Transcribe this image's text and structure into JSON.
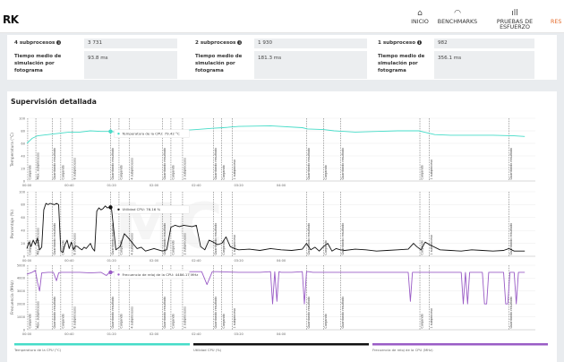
{
  "header": {
    "logo": "RK",
    "nav": [
      {
        "label": "INICIO",
        "icon": "home-icon",
        "glyph": "⌂"
      },
      {
        "label": "BENCHMARKS",
        "icon": "gauge-icon",
        "glyph": "◠"
      },
      {
        "label": "PRUEBAS DE ESFUERZO",
        "icon": "bar-chart-icon",
        "glyph": "ıll"
      },
      {
        "label": "RES",
        "icon": "results-icon",
        "glyph": ""
      }
    ],
    "active_color": "#e46b2b"
  },
  "stats": [
    {
      "label": "4 subprocesos",
      "value": "3 731",
      "time_label": "Tiempo medio de simulación por fotograma",
      "time_value": "93.8 ms"
    },
    {
      "label": "2 subprocesos",
      "value": "1 930",
      "time_label": "Tiempo medio de simulación por fotograma",
      "time_value": "181.3 ms"
    },
    {
      "label": "1 subproceso",
      "value": "982",
      "time_label": "Tiempo medio de simulación por fotograma",
      "time_value": "356.1 ms"
    }
  ],
  "monitor": {
    "title": "Supervisión detallada",
    "x_ticks": [
      "00:00",
      "00:40",
      "01:20",
      "02:00",
      "02:40",
      "03:20",
      "04:00"
    ],
    "markers": [
      {
        "t": 0.8,
        "label": "Cargando"
      },
      {
        "t": 8.5,
        "label": "Máx. subprocesos"
      },
      {
        "t": 24,
        "label": "Guardando resultado"
      },
      {
        "t": 32,
        "label": "Cargando"
      },
      {
        "t": 43,
        "label": "8 subprocesos"
      },
      {
        "t": 79,
        "label": "Guardando resultado"
      },
      {
        "t": 87,
        "label": "Cargando"
      },
      {
        "t": 97,
        "label": "4 subprocesos"
      },
      {
        "t": 128,
        "label": "Guardando resultado"
      },
      {
        "t": 136,
        "label": "Cargando"
      },
      {
        "t": 147,
        "label": "2 subprocesos"
      },
      {
        "t": 176,
        "label": "Guardando resultado"
      },
      {
        "t": 184,
        "label": "Cargando"
      },
      {
        "t": 194,
        "label": "1 subproceso"
      },
      {
        "t": 264,
        "label": "Guardando resultado"
      },
      {
        "t": 280,
        "label": "Cargando"
      },
      {
        "t": 296,
        "label": "Guardando resultado"
      },
      {
        "t": 371,
        "label": "Cargando"
      },
      {
        "t": 380,
        "label": "1 subproceso"
      },
      {
        "t": 455,
        "label": "Guardando resultado"
      }
    ],
    "legend": [
      {
        "label": "Temperatura de la CPU (°C)",
        "color": "#46dcc8"
      },
      {
        "label": "Utilidad CPU (%)",
        "color": "#111111"
      },
      {
        "label": "Frecuencia de reloj de la CPU (MHz)",
        "color": "#9a5cc6"
      }
    ]
  },
  "chart_data": [
    {
      "type": "line",
      "ylabel": "Temperatura (°C)",
      "ylim": [
        0,
        100
      ],
      "y_ticks": [
        0,
        20,
        40,
        60,
        80,
        100
      ],
      "xlim": [
        0,
        480
      ],
      "series": [
        {
          "name": "Temperatura de la CPU (°C)",
          "color": "#46dcc8",
          "x": [
            0,
            5,
            10,
            20,
            30,
            40,
            50,
            60,
            70,
            75,
            79,
            85,
            95,
            110,
            130,
            140,
            150,
            160,
            175,
            185,
            200,
            230,
            260,
            265,
            280,
            290,
            300,
            310,
            330,
            350,
            370,
            375,
            385,
            400,
            420,
            440,
            460,
            470
          ],
          "y": [
            60,
            68,
            72,
            74,
            76,
            78,
            78,
            80,
            79,
            79,
            79,
            78,
            80,
            81,
            80,
            80,
            81,
            82,
            84,
            85,
            87,
            88,
            85,
            83,
            82,
            80,
            79,
            78,
            79,
            80,
            80,
            78,
            74,
            73,
            73,
            73,
            72,
            71
          ]
        }
      ],
      "tooltip": {
        "t": 79,
        "value": "Temperatura de la CPU: 79.42 °C"
      }
    },
    {
      "type": "line",
      "ylabel": "Porcentaje (%)",
      "ylim": [
        0,
        100
      ],
      "y_ticks": [
        0,
        20,
        40,
        60,
        80,
        100
      ],
      "xlim": [
        0,
        480
      ],
      "series": [
        {
          "name": "Utilidad CPU (%)",
          "color": "#111111",
          "x": [
            0,
            2,
            4,
            6,
            8,
            10,
            12,
            14,
            16,
            18,
            20,
            22,
            24,
            26,
            28,
            30,
            32,
            34,
            36,
            38,
            40,
            42,
            44,
            46,
            48,
            50,
            52,
            54,
            56,
            58,
            60,
            62,
            64,
            66,
            68,
            70,
            72,
            74,
            76,
            78,
            80,
            84,
            88,
            92,
            96,
            100,
            104,
            108,
            112,
            116,
            120,
            124,
            128,
            132,
            136,
            140,
            144,
            148,
            152,
            156,
            160,
            164,
            168,
            172,
            176,
            180,
            184,
            188,
            192,
            196,
            200,
            210,
            220,
            230,
            240,
            250,
            260,
            264,
            268,
            272,
            276,
            280,
            284,
            288,
            292,
            296,
            300,
            310,
            320,
            330,
            340,
            350,
            360,
            365,
            368,
            372,
            376,
            380,
            390,
            400,
            410,
            420,
            430,
            440,
            450,
            455,
            460,
            470
          ],
          "y": [
            12,
            22,
            15,
            25,
            18,
            28,
            10,
            14,
            72,
            82,
            80,
            82,
            81,
            80,
            82,
            80,
            8,
            6,
            18,
            25,
            12,
            22,
            10,
            16,
            15,
            12,
            10,
            14,
            12,
            16,
            20,
            12,
            8,
            70,
            75,
            72,
            74,
            78,
            75,
            76,
            72,
            10,
            15,
            35,
            28,
            20,
            12,
            14,
            8,
            10,
            12,
            10,
            8,
            10,
            45,
            48,
            46,
            48,
            47,
            46,
            48,
            15,
            10,
            25,
            22,
            18,
            20,
            30,
            15,
            12,
            10,
            11,
            9,
            12,
            10,
            9,
            11,
            20,
            10,
            14,
            8,
            15,
            20,
            8,
            12,
            10,
            9,
            11,
            10,
            8,
            9,
            10,
            11,
            20,
            15,
            10,
            22,
            18,
            10,
            9,
            8,
            10,
            9,
            8,
            9,
            12,
            8,
            8
          ]
        }
      ],
      "tooltip": {
        "t": 79,
        "value": "Utilidad CPU: 76.16 %"
      }
    },
    {
      "type": "line",
      "ylabel": "Frecuencia (MHz)",
      "ylim": [
        0,
        5000
      ],
      "y_ticks": [
        0,
        1000,
        2000,
        3000,
        4000,
        5000
      ],
      "xlim": [
        0,
        480
      ],
      "series": [
        {
          "name": "Frecuencia de reloj de la CPU (MHz)",
          "color": "#9a5cc6",
          "x": [
            0,
            5,
            8,
            10,
            12,
            14,
            20,
            25,
            28,
            30,
            32,
            40,
            50,
            60,
            70,
            75,
            78,
            80,
            85,
            95,
            110,
            120,
            125,
            128,
            130,
            135,
            150,
            165,
            170,
            175,
            180,
            200,
            220,
            230,
            232,
            234,
            236,
            238,
            240,
            250,
            260,
            262,
            264,
            266,
            270,
            300,
            320,
            340,
            360,
            362,
            364,
            380,
            400,
            410,
            412,
            414,
            416,
            418,
            420,
            425,
            430,
            432,
            434,
            436,
            440,
            445,
            450,
            452,
            454,
            456,
            460,
            462,
            464,
            470
          ],
          "y": [
            4300,
            4450,
            4600,
            3700,
            3000,
            4400,
            4450,
            4450,
            3800,
            4400,
            4450,
            4450,
            4450,
            4400,
            4450,
            4200,
            4450,
            4486,
            4450,
            4500,
            4450,
            4500,
            4000,
            4500,
            4450,
            4450,
            4500,
            4500,
            3500,
            4500,
            4500,
            4450,
            4450,
            4500,
            2000,
            4500,
            2200,
            4500,
            4450,
            4450,
            4500,
            2000,
            4500,
            4500,
            4450,
            4450,
            4450,
            4450,
            4450,
            2200,
            4450,
            4450,
            4450,
            4450,
            2000,
            4450,
            2000,
            4450,
            4450,
            4450,
            4450,
            2000,
            2000,
            4450,
            4450,
            4450,
            4450,
            2000,
            2000,
            4450,
            4450,
            2000,
            4450,
            4450
          ]
        }
      ],
      "tooltip": {
        "t": 79,
        "value": "Frecuencia de reloj de la CPU: 4486.17 MHz"
      }
    }
  ]
}
